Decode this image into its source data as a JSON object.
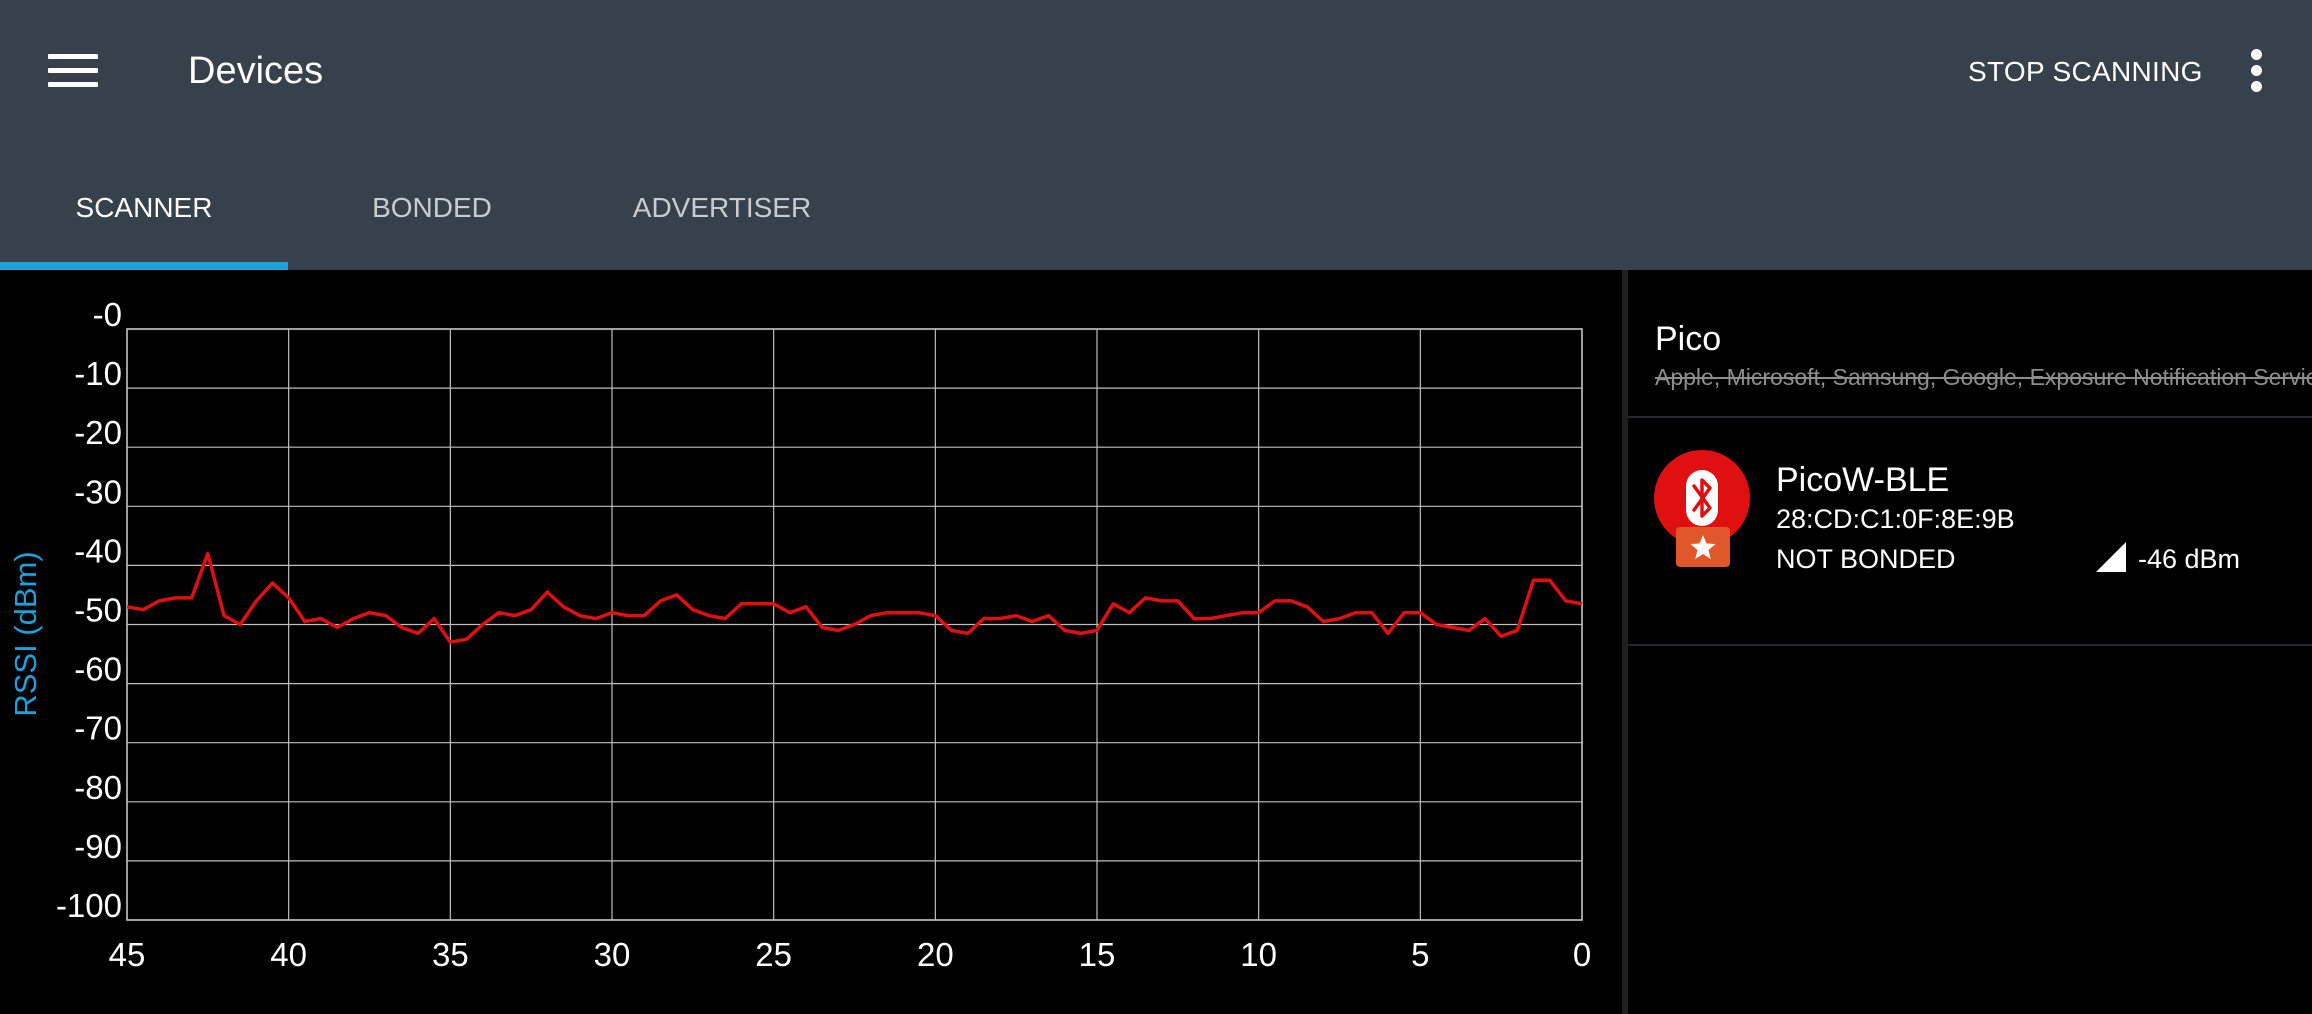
{
  "appbar": {
    "title": "Devices",
    "stop_label": "STOP SCANNING",
    "menu_icon": "hamburger-menu-icon",
    "overflow_icon": "more-vert-icon"
  },
  "tabs": [
    {
      "label": "SCANNER",
      "active": true
    },
    {
      "label": "BONDED",
      "active": false
    },
    {
      "label": "ADVERTISER",
      "active": false
    }
  ],
  "colors": {
    "appbar": "#36414b",
    "accent": "#1ca1d9",
    "series": "#e01010",
    "device_icon": "#e01010",
    "favorite_badge": "#e0572a"
  },
  "chart_data": {
    "type": "line",
    "ylabel": "RSSI (dBm)",
    "xlabel": "",
    "xlim": [
      45,
      0
    ],
    "ylim": [
      -100,
      0
    ],
    "x_ticks": [
      "45",
      "40",
      "35",
      "30",
      "25",
      "20",
      "15",
      "10",
      "5",
      "0"
    ],
    "y_ticks": [
      "-0",
      "-10",
      "-20",
      "-30",
      "-40",
      "-50",
      "-60",
      "-70",
      "-80",
      "-90",
      "-100"
    ],
    "grid": true,
    "series": [
      {
        "color": "#e01010",
        "x": [
          45,
          44.5,
          44,
          43.5,
          43,
          42.5,
          42,
          41.5,
          41,
          40.5,
          40,
          39.5,
          39,
          38.5,
          38,
          37.5,
          37,
          36.5,
          36,
          35.5,
          35,
          34.5,
          34,
          33.5,
          33,
          32.5,
          32,
          31.5,
          31,
          30.5,
          30,
          29.5,
          29,
          28.5,
          28,
          27.5,
          27,
          26.5,
          26,
          25.5,
          25,
          24.5,
          24,
          23.5,
          23,
          22.5,
          22,
          21.5,
          21,
          20.5,
          20,
          19.5,
          19,
          18.5,
          18,
          17.5,
          17,
          16.5,
          16,
          15.5,
          15,
          14.5,
          14,
          13.5,
          13,
          12.5,
          12,
          11.5,
          11,
          10.5,
          10,
          9.5,
          9,
          8.5,
          8,
          7.5,
          7,
          6.5,
          6,
          5.5,
          5,
          4.5,
          4,
          3.5,
          3,
          2.5,
          2,
          1.5,
          1,
          0.5,
          0
        ],
        "y": [
          -47,
          -47.5,
          -46,
          -45.5,
          -45.5,
          -38,
          -48.5,
          -50,
          -46,
          -43,
          -45.5,
          -49.5,
          -49,
          -50.5,
          -49,
          -48,
          -48.5,
          -50.5,
          -51.5,
          -49,
          -53,
          -52.5,
          -50,
          -48,
          -48.5,
          -47.5,
          -44.5,
          -47,
          -48.5,
          -49,
          -48,
          -48.5,
          -48.5,
          -46,
          -45,
          -47.5,
          -48.5,
          -49,
          -46.5,
          -46.5,
          -46.5,
          -48,
          -47,
          -50.5,
          -51,
          -50,
          -48.5,
          -48,
          -48,
          -48,
          -48.5,
          -51,
          -51.5,
          -49,
          -49,
          -48.5,
          -49.5,
          -48.5,
          -51,
          -51.5,
          -51,
          -46.5,
          -48,
          -45.5,
          -46,
          -46,
          -49,
          -49,
          -48.5,
          -48,
          -48,
          -46,
          -46,
          -47,
          -49.5,
          -49,
          -48,
          -48,
          -51.5,
          -48,
          -48,
          -50,
          -50.5,
          -51,
          -49,
          -52,
          -51,
          -42.5,
          -42.5,
          -46,
          -46.5
        ]
      }
    ]
  },
  "device_list": {
    "filter_title": "Pico",
    "filter_subtitle": "Apple, Microsoft, Samsung, Google, Exposure Notification Service",
    "devices": [
      {
        "name": "PicoW-BLE",
        "address": "28:CD:C1:0F:8E:9B",
        "bond_state": "NOT BONDED",
        "rssi": "-46 dBm",
        "icon": "bluetooth-icon",
        "badge_icon": "star-icon",
        "signal_icon": "signal-strength-icon"
      }
    ]
  }
}
